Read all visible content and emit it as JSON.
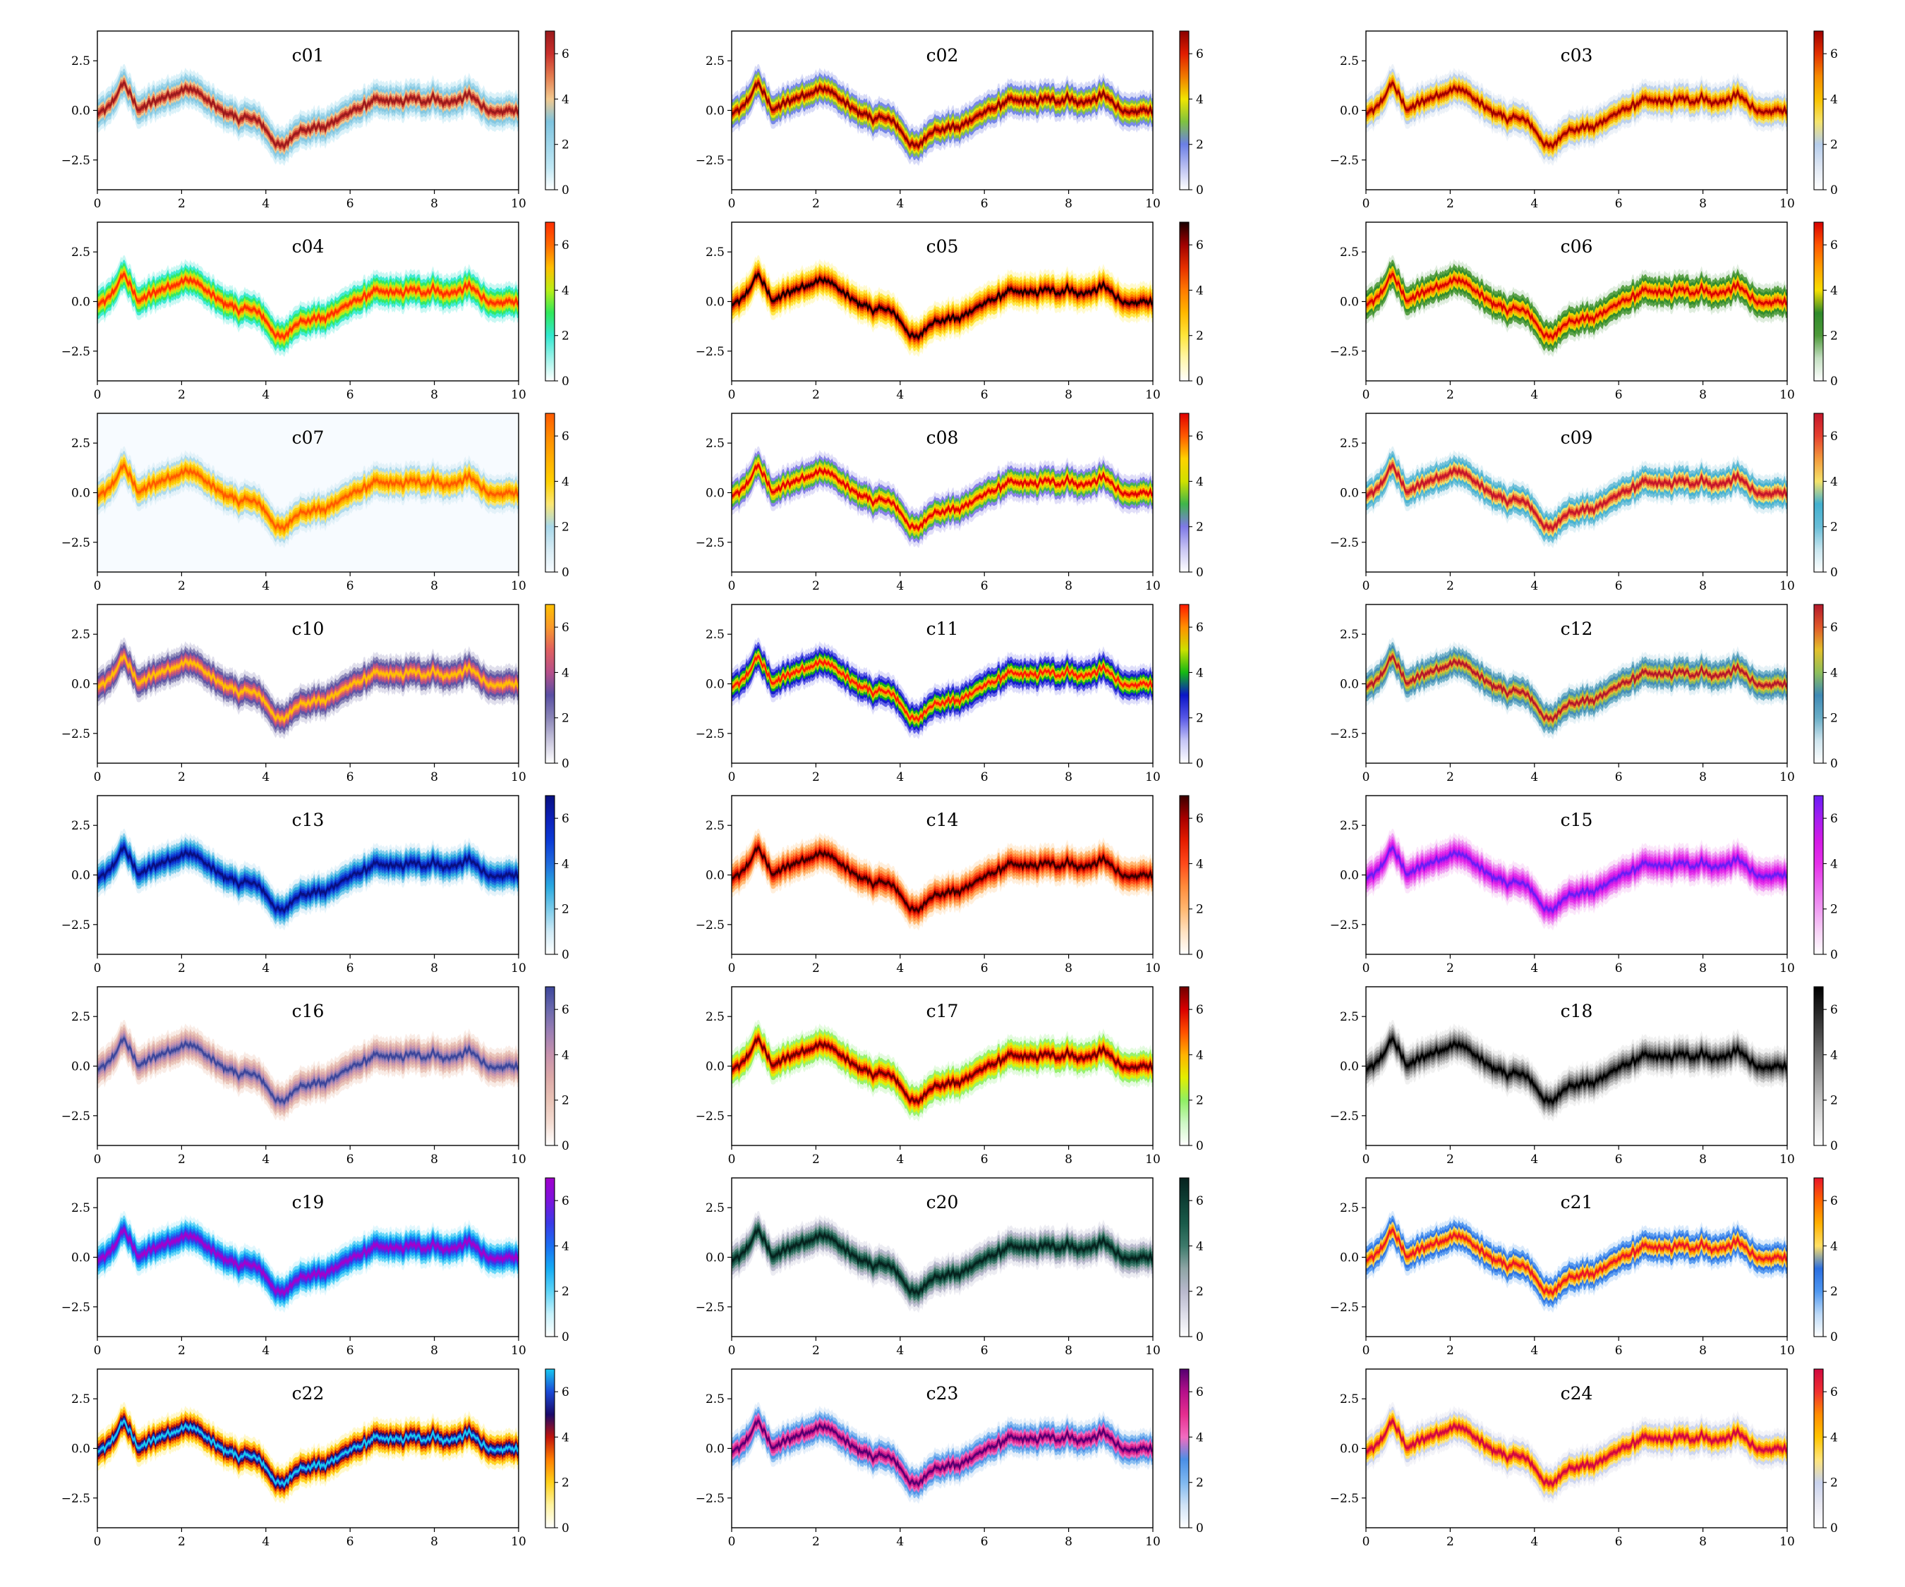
{
  "chart_data": {
    "type": "heatmap",
    "description": "Grid of 24 2D-histogram panels (3 columns x 8 rows) of the same noisy time series, each with a different colormap and colorbar.",
    "x_range": [
      0,
      10
    ],
    "y_range": [
      -4,
      4
    ],
    "x_ticks": [
      "0",
      "2",
      "4",
      "6",
      "8",
      "10"
    ],
    "y_ticks": [
      "2.5",
      "0.0",
      "−2.5"
    ],
    "colorbar_range": [
      0,
      7
    ],
    "colorbar_ticks": [
      "0",
      "2",
      "4",
      "6"
    ],
    "series_shape": {
      "x": [
        0,
        0.25,
        0.5,
        0.62,
        0.7,
        0.85,
        1.0,
        1.2,
        1.5,
        1.8,
        2.0,
        2.2,
        2.4,
        2.6,
        2.8,
        3.0,
        3.2,
        3.4,
        3.6,
        3.8,
        3.95,
        4.1,
        4.25,
        4.4,
        4.55,
        4.75,
        5.0,
        5.2,
        5.4,
        5.6,
        5.9,
        6.2,
        6.4,
        6.6,
        6.8,
        7.0,
        7.2,
        7.4,
        7.6,
        7.8,
        8.0,
        8.2,
        8.4,
        8.6,
        8.8,
        9.0,
        9.2,
        9.4,
        9.6,
        9.8,
        10.0
      ],
      "y": [
        -0.2,
        0.1,
        0.9,
        1.45,
        1.1,
        0.5,
        0.0,
        0.3,
        0.6,
        0.85,
        1.0,
        1.1,
        0.9,
        0.5,
        0.2,
        -0.1,
        -0.2,
        -0.5,
        -0.3,
        -0.55,
        -0.8,
        -1.3,
        -1.7,
        -1.85,
        -1.5,
        -1.0,
        -1.0,
        -0.8,
        -0.9,
        -0.55,
        -0.2,
        0.1,
        0.3,
        0.55,
        0.45,
        0.5,
        0.4,
        0.6,
        0.55,
        0.45,
        0.7,
        0.35,
        0.45,
        0.5,
        0.8,
        0.5,
        0.15,
        -0.2,
        -0.1,
        0.05,
        -0.05
      ]
    },
    "panels": [
      {
        "title": "c01",
        "colormap": [
          "#ffffff",
          "#bfe7f4",
          "#9fd6ea",
          "#7fc4df",
          "#f2c98f",
          "#e37c4f",
          "#c9302c",
          "#9a1a1c"
        ]
      },
      {
        "title": "c02",
        "colormap": [
          "#ffffff",
          "#b9bff1",
          "#6b7fe6",
          "#7fc23f",
          "#f0e500",
          "#f07a00",
          "#e11d00",
          "#8a0000"
        ]
      },
      {
        "title": "c03",
        "colormap": [
          "#ffffff",
          "#dfe7f3",
          "#b6cdec",
          "#f5e46c",
          "#f8c200",
          "#f58a00",
          "#e33000",
          "#9e0000"
        ]
      },
      {
        "title": "c04",
        "colormap": [
          "#ffffff",
          "#9df3e9",
          "#32e8cf",
          "#30e85c",
          "#b9ef16",
          "#ffbf00",
          "#ff6a00",
          "#ff2d00"
        ]
      },
      {
        "title": "c05",
        "colormap": [
          "#ffffff",
          "#fff6a8",
          "#ffe53a",
          "#ffb800",
          "#ff7a00",
          "#e62f00",
          "#a00000",
          "#1a0000"
        ]
      },
      {
        "title": "c06",
        "colormap": [
          "#ffffff",
          "#c4dfc2",
          "#4e9a3a",
          "#2f8a2a",
          "#f6df00",
          "#ff9f00",
          "#ff5500",
          "#d70000"
        ]
      },
      {
        "title": "c07",
        "colormap": [
          "#f7fbff",
          "#d6ebf4",
          "#a8d8ea",
          "#fbe774",
          "#ffd000",
          "#ffae00",
          "#ff8a00",
          "#ff5a00"
        ]
      },
      {
        "title": "c08",
        "colormap": [
          "#ffffff",
          "#c9c5f3",
          "#7e79e6",
          "#3fb54a",
          "#cfe000",
          "#ffd200",
          "#ff5a00",
          "#e00000"
        ]
      },
      {
        "title": "c09",
        "colormap": [
          "#ffffff",
          "#c8e6ef",
          "#69bed8",
          "#43b0cf",
          "#f5e36a",
          "#f39a3c",
          "#e6402f",
          "#c3162b"
        ]
      },
      {
        "title": "c10",
        "colormap": [
          "#ffffff",
          "#c7c4dc",
          "#8a85b7",
          "#5a4fa3",
          "#b5508a",
          "#e06060",
          "#f99a2c",
          "#ffc000"
        ]
      },
      {
        "title": "c11",
        "colormap": [
          "#ffffff",
          "#c5c5f6",
          "#5757e6",
          "#0a16c8",
          "#14b814",
          "#cce000",
          "#ff9000",
          "#ff1a00"
        ]
      },
      {
        "title": "c12",
        "colormap": [
          "#ffffff",
          "#cfe5ee",
          "#6aaec7",
          "#3f8ab5",
          "#8ebf5b",
          "#e3c02b",
          "#e0592a",
          "#b2182b"
        ]
      },
      {
        "title": "c13",
        "colormap": [
          "#ffffff",
          "#cfeaf6",
          "#7bcbea",
          "#29a9e0",
          "#1f6bdd",
          "#0b3bd6",
          "#0c20b8",
          "#081080"
        ]
      },
      {
        "title": "c14",
        "colormap": [
          "#ffffff",
          "#ffe1c0",
          "#ffb770",
          "#ff8a3a",
          "#ff4a1a",
          "#e51d00",
          "#a80000",
          "#3a0000"
        ]
      },
      {
        "title": "c15",
        "colormap": [
          "#ffffff",
          "#f7d2f6",
          "#f09cf2",
          "#ea66ee",
          "#e630ea",
          "#d41be6",
          "#a41ef0",
          "#6a1df5"
        ]
      },
      {
        "title": "c16",
        "colormap": [
          "#ffffff",
          "#f4dcd2",
          "#e9c3b6",
          "#dca9a8",
          "#c792ad",
          "#9c7fb4",
          "#6a69ad",
          "#3d469b"
        ]
      },
      {
        "title": "c17",
        "colormap": [
          "#ffffff",
          "#cdf7c4",
          "#8fef62",
          "#e3ee00",
          "#ffb200",
          "#ff5000",
          "#d90000",
          "#700000"
        ]
      },
      {
        "title": "c18",
        "colormap": [
          "#ffffff",
          "#e4e4e4",
          "#c4c4c4",
          "#9a9a9a",
          "#707070",
          "#474747",
          "#222222",
          "#000000"
        ]
      },
      {
        "title": "c19",
        "colormap": [
          "#ffffff",
          "#c6f1fb",
          "#5dd4f7",
          "#16acf4",
          "#1a6ff2",
          "#3a3ae6",
          "#7c14dc",
          "#a100cc"
        ]
      },
      {
        "title": "c20",
        "colormap": [
          "#ffffff",
          "#dcdce8",
          "#b8b8cc",
          "#8ea5a5",
          "#3d7a6b",
          "#1a5b4a",
          "#0e3f34",
          "#06221e"
        ]
      },
      {
        "title": "c21",
        "colormap": [
          "#ffffff",
          "#bcd9f7",
          "#4f97f0",
          "#2b6fe0",
          "#ffe066",
          "#ffb000",
          "#ff6400",
          "#e8152a"
        ]
      },
      {
        "title": "c22",
        "colormap": [
          "#ffffff",
          "#fff3a0",
          "#ffd11a",
          "#ff8000",
          "#c0140c",
          "#1a0a6a",
          "#1a4ad6",
          "#19c8f0"
        ]
      },
      {
        "title": "c23",
        "colormap": [
          "#ffffff",
          "#cfe2f6",
          "#7fb8ef",
          "#4a8fe6",
          "#f36cc0",
          "#e52e8f",
          "#b5108a",
          "#540070"
        ]
      },
      {
        "title": "c24",
        "colormap": [
          "#ffffff",
          "#e9e9f2",
          "#c9d3ee",
          "#ffe57a",
          "#ffc400",
          "#ff8c00",
          "#f03030",
          "#d00840"
        ]
      }
    ]
  }
}
